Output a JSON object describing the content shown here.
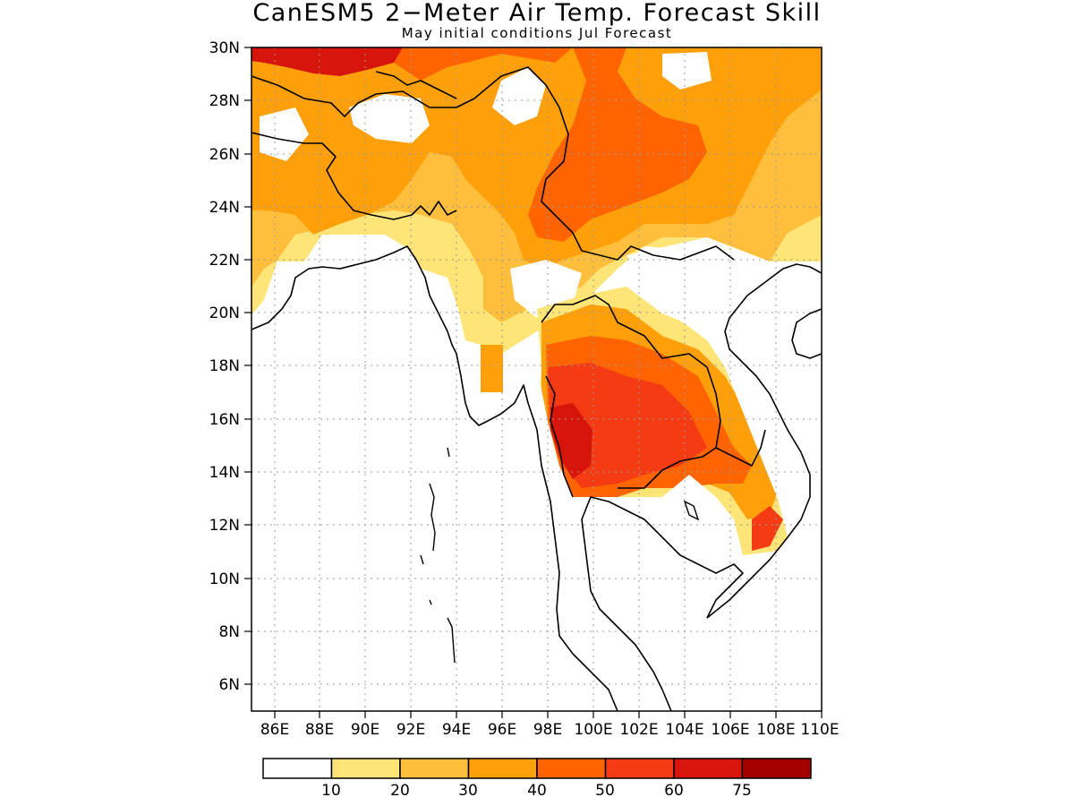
{
  "title": "CanESM5 2−Meter Air Temp. Forecast Skill",
  "subtitle": "May initial conditions   Jul Forecast",
  "map_data": {
    "type": "filled-contour-map",
    "lon_range": [
      85,
      110
    ],
    "lat_range": [
      5,
      30
    ],
    "x_ticks": [
      "86E",
      "88E",
      "90E",
      "92E",
      "94E",
      "96E",
      "98E",
      "100E",
      "102E",
      "104E",
      "106E",
      "108E",
      "110E"
    ],
    "y_ticks": [
      "6N",
      "8N",
      "10N",
      "12N",
      "14N",
      "16N",
      "18N",
      "20N",
      "22N",
      "24N",
      "26N",
      "28N",
      "30N"
    ],
    "grid": true,
    "grid_style": "dotted"
  },
  "colorbar": {
    "colors": [
      "#ffffff",
      "#ffe478",
      "#ffbe3c",
      "#ffa00a",
      "#ff6400",
      "#f53b14",
      "#d7150a",
      "#a50000"
    ],
    "labels": [
      "10",
      "20",
      "30",
      "40",
      "50",
      "60",
      "75"
    ]
  }
}
